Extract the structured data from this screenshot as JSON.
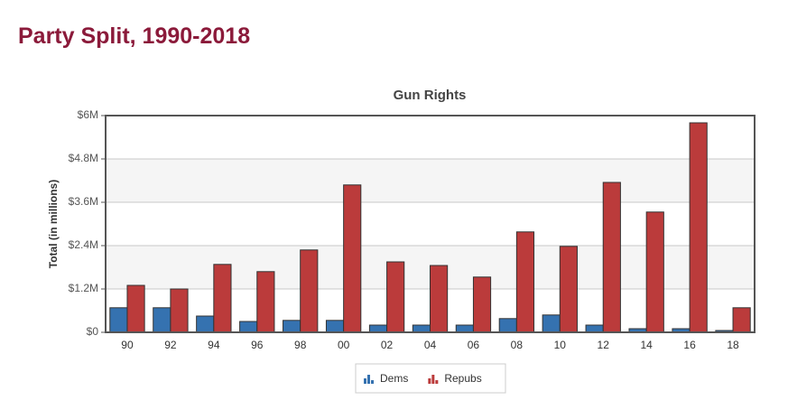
{
  "header": {
    "title": "Party Split, 1990-2018"
  },
  "chart_data": {
    "type": "bar",
    "title": "Gun Rights",
    "y_label": "Total (in millions)",
    "categories": [
      "90",
      "92",
      "94",
      "96",
      "98",
      "00",
      "02",
      "04",
      "06",
      "08",
      "10",
      "12",
      "14",
      "16",
      "18"
    ],
    "series": [
      {
        "name": "Dems",
        "color": "#3572b0",
        "values": [
          0.68,
          0.68,
          0.45,
          0.3,
          0.33,
          0.33,
          0.2,
          0.2,
          0.2,
          0.38,
          0.48,
          0.2,
          0.1,
          0.1,
          0.05
        ]
      },
      {
        "name": "Repubs",
        "color": "#bb3b3b",
        "values": [
          1.3,
          1.2,
          1.88,
          1.68,
          2.28,
          4.08,
          1.95,
          1.85,
          1.53,
          2.78,
          2.38,
          4.15,
          3.33,
          5.8,
          0.68
        ]
      }
    ],
    "ylim": [
      0,
      6
    ],
    "yticks": [
      {
        "value": 0,
        "label": "$0"
      },
      {
        "value": 1.2,
        "label": "$1.2M"
      },
      {
        "value": 2.4,
        "label": "$2.4M"
      },
      {
        "value": 3.6,
        "label": "$3.6M"
      },
      {
        "value": 4.8,
        "label": "$4.8M"
      },
      {
        "value": 6,
        "label": "$6M"
      }
    ],
    "grid": true
  }
}
